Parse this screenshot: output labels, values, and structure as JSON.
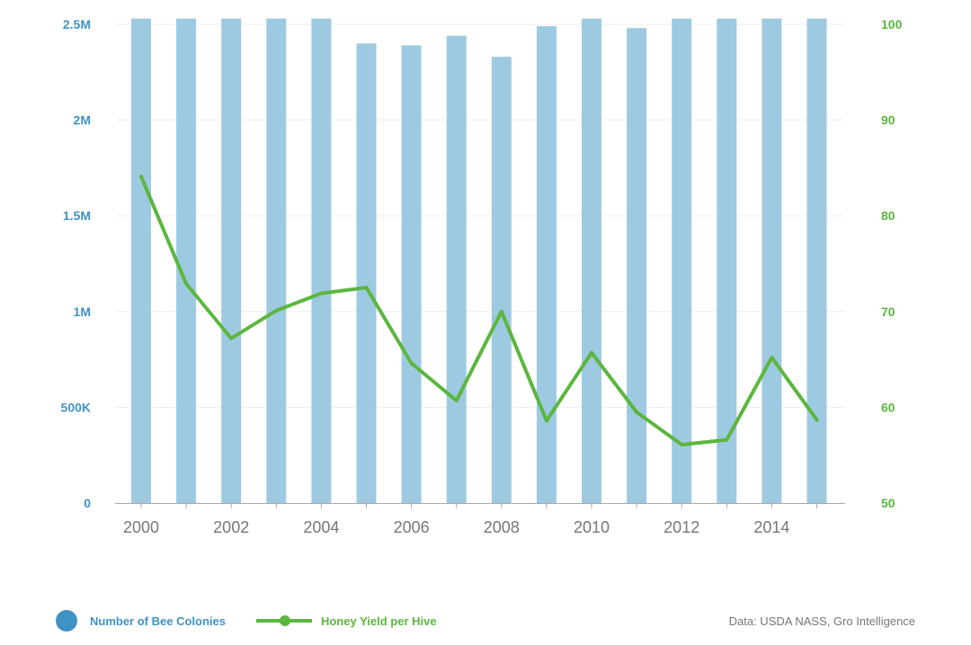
{
  "chart_data": {
    "type": "bar",
    "title": "",
    "xlabel": "",
    "ylabel": "",
    "x": [
      2000,
      2001,
      2002,
      2003,
      2004,
      2005,
      2006,
      2007,
      2008,
      2009,
      2010,
      2011,
      2012,
      2013,
      2014,
      2015
    ],
    "x_tick_labels": [
      "2000",
      "2002",
      "2004",
      "2006",
      "2008",
      "2010",
      "2012",
      "2014"
    ],
    "series": [
      {
        "name": "Number of Bee Colonies",
        "type": "bar",
        "axis": "left",
        "values": [
          2530000,
          2530000,
          2530000,
          2530000,
          2530000,
          2400000,
          2390000,
          2440000,
          2330000,
          2490000,
          2530000,
          2480000,
          2530000,
          2530000,
          2530000,
          2530000
        ]
      },
      {
        "name": "Honey Yield per Hive",
        "type": "line",
        "axis": "right",
        "values": [
          84.1,
          72.9,
          67.2,
          70.1,
          71.9,
          72.5,
          64.6,
          60.7,
          70.0,
          58.6,
          65.7,
          59.5,
          56.1,
          56.6,
          65.2,
          58.7
        ]
      }
    ],
    "y_left": {
      "ylim": [
        0,
        2500000
      ],
      "ticks": [
        0,
        500000,
        1000000,
        1500000,
        2000000,
        2500000
      ],
      "tick_labels": [
        "0",
        "500K",
        "1M",
        "1.5M",
        "2M",
        "2.5M"
      ]
    },
    "y_right": {
      "ylim": [
        50,
        100
      ],
      "ticks": [
        50,
        60,
        70,
        80,
        90,
        100
      ],
      "tick_labels": [
        "50",
        "60",
        "70",
        "80",
        "90",
        "100"
      ]
    },
    "grid": true,
    "legend_position": "bottom-left",
    "source": "Data: USDA NASS, Gro Intelligence",
    "colors": {
      "bar": "#9ecae1",
      "line": "#5cb63f",
      "left_axis_text": "#3f93c4",
      "right_axis_text": "#5cb63f",
      "legend_dot": "#3f93c4",
      "legend_bar_text": "#3f93c4",
      "legend_line_text": "#5cb63f"
    }
  }
}
